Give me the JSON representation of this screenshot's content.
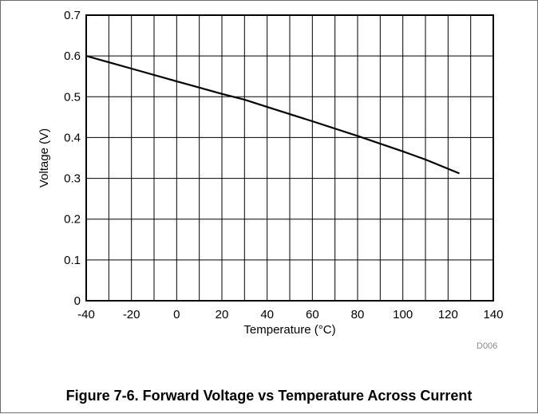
{
  "chart_data": {
    "type": "line",
    "xlabel": "Temperature (°C)",
    "ylabel": "Voltage (V)",
    "xlim": [
      -40,
      140
    ],
    "ylim": [
      0,
      0.7
    ],
    "x_ticks": [
      "-40",
      "-20",
      "0",
      "20",
      "40",
      "60",
      "80",
      "100",
      "120",
      "140"
    ],
    "y_ticks": [
      "0",
      "0.1",
      "0.2",
      "0.3",
      "0.4",
      "0.5",
      "0.6",
      "0.7"
    ],
    "grid": true,
    "series": [
      {
        "x": [
          -40,
          -20,
          0,
          20,
          30,
          40,
          60,
          80,
          100,
          110,
          125
        ],
        "y": [
          0.6,
          0.569,
          0.538,
          0.507,
          0.493,
          0.475,
          0.44,
          0.404,
          0.366,
          0.346,
          0.312
        ]
      }
    ]
  },
  "figure": {
    "caption": "Figure 7-6. Forward Voltage vs Temperature Across Current",
    "doc_id": "D006"
  }
}
